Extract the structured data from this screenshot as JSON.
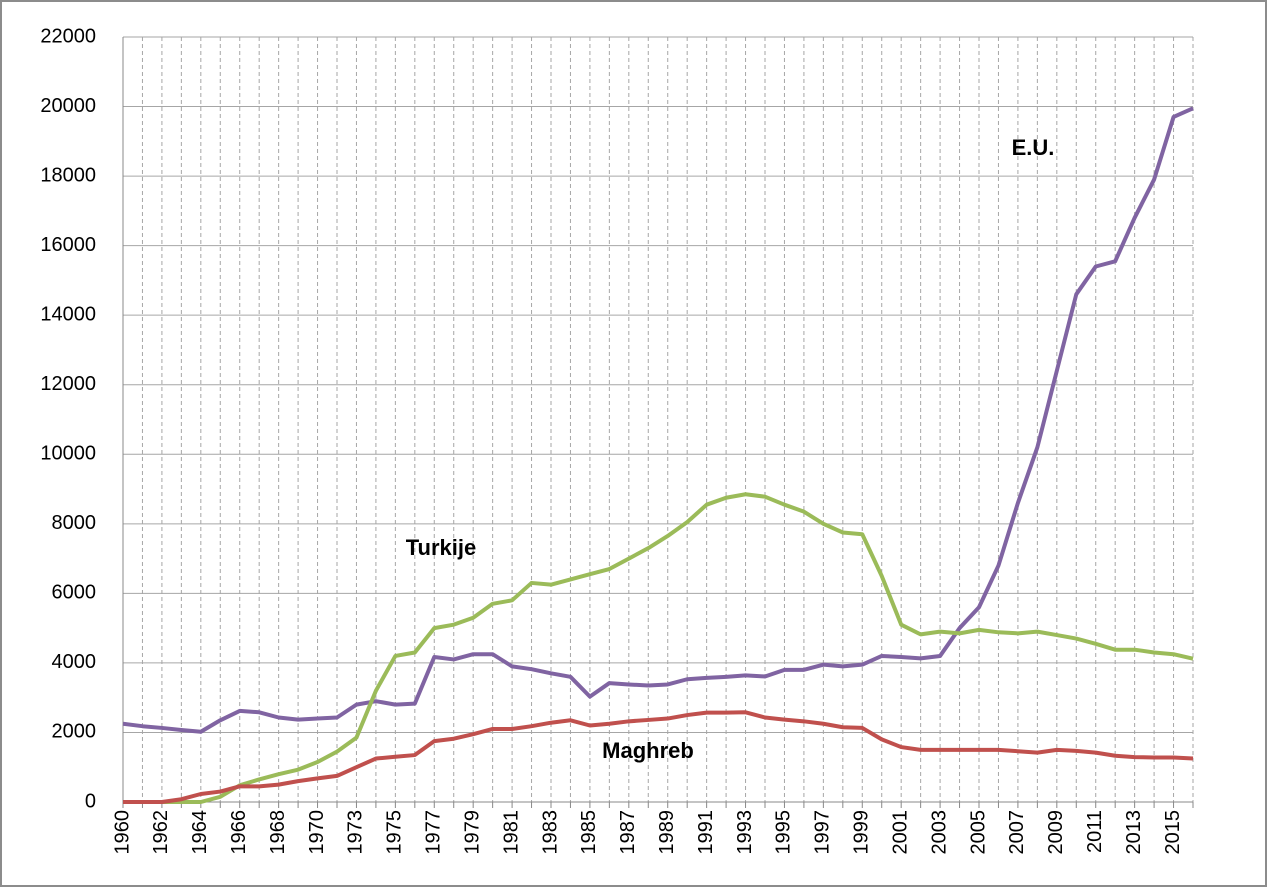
{
  "chart_data": {
    "type": "line",
    "categories": [
      "1960",
      null,
      "1962",
      null,
      "1964",
      null,
      "1966",
      null,
      "1968",
      null,
      "1970",
      null,
      "1973",
      null,
      "1975",
      null,
      "1977",
      null,
      "1979",
      null,
      "1981",
      null,
      "1983",
      null,
      "1985",
      null,
      "1987",
      null,
      "1989",
      null,
      "1991",
      null,
      "1993",
      null,
      "1995",
      null,
      "1997",
      null,
      "1999",
      null,
      "2001",
      null,
      "2003",
      null,
      "2005",
      null,
      "2007",
      null,
      "2009",
      null,
      "2011",
      null,
      "2013",
      null,
      "2015",
      null
    ],
    "series": [
      {
        "name": "E.U.",
        "color": "#8064a2",
        "values": [
          2250,
          2180,
          2130,
          2070,
          2020,
          2350,
          2620,
          2580,
          2430,
          2370,
          2400,
          2430,
          2800,
          2900,
          2800,
          2830,
          4170,
          4100,
          4250,
          4250,
          3900,
          3820,
          3700,
          3600,
          3030,
          3420,
          3380,
          3350,
          3380,
          3530,
          3570,
          3600,
          3640,
          3610,
          3800,
          3800,
          3950,
          3900,
          3950,
          4200,
          4170,
          4130,
          4200,
          5000,
          5600,
          6800,
          8600,
          10200,
          12400,
          14600,
          15400,
          15550,
          16800,
          17900,
          19700,
          19950
        ]
      },
      {
        "name": "Turkije",
        "color": "#9bbb59",
        "values": [
          0,
          0,
          0,
          0,
          0,
          150,
          480,
          650,
          800,
          930,
          1150,
          1450,
          1850,
          3200,
          4200,
          4300,
          5000,
          5100,
          5300,
          5700,
          5800,
          6300,
          6250,
          6400,
          6550,
          6700,
          7000,
          7300,
          7650,
          8050,
          8550,
          8750,
          8850,
          8780,
          8550,
          8350,
          8000,
          7750,
          7700,
          6500,
          5100,
          4820,
          4900,
          4850,
          4950,
          4880,
          4850,
          4900,
          4800,
          4700,
          4550,
          4380,
          4380,
          4300,
          4250,
          4120
        ]
      },
      {
        "name": "Maghreb",
        "color": "#c0504d",
        "values": [
          0,
          0,
          0,
          80,
          230,
          300,
          450,
          450,
          500,
          600,
          680,
          750,
          1000,
          1250,
          1300,
          1350,
          1750,
          1820,
          1950,
          2100,
          2100,
          2180,
          2280,
          2350,
          2200,
          2250,
          2320,
          2360,
          2400,
          2500,
          2570,
          2570,
          2580,
          2430,
          2370,
          2320,
          2250,
          2150,
          2130,
          1800,
          1580,
          1500,
          1500,
          1500,
          1500,
          1500,
          1460,
          1420,
          1500,
          1470,
          1420,
          1330,
          1290,
          1280,
          1280,
          1250
        ]
      }
    ],
    "ylim": [
      0,
      22000
    ],
    "yticks": [
      0,
      2000,
      4000,
      6000,
      8000,
      10000,
      12000,
      14000,
      16000,
      18000,
      20000,
      22000
    ],
    "grid": true
  }
}
